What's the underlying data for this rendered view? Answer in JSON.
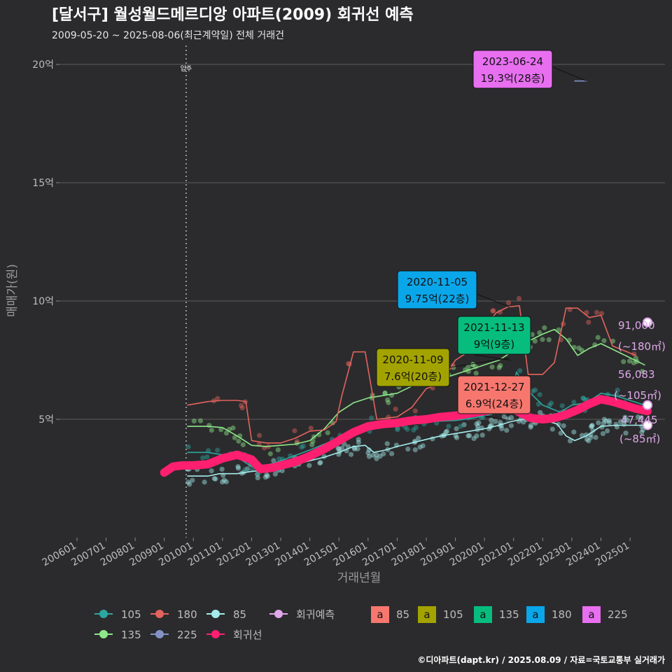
{
  "title": "[달서구] 월성월드메르디앙 아파트(2009) 회귀선 예측",
  "subtitle": "2009-05-20 ~ 2025-08-06(최근계약일) 전체 거래건",
  "credit": "©디아파트(dapt.kr) / 2025.08.09 / 자료=국토교통부 실거래가",
  "move_in_label": "입주",
  "chart_data": {
    "type": "line",
    "title": "[달서구] 월성월드메르디앙 아파트(2009) 회귀선 예측",
    "xlabel": "거래년월",
    "ylabel": "매매가(원)",
    "x_range": [
      2005.4,
      2026.2
    ],
    "ylim": [
      0,
      20.8
    ],
    "y_ticks": [
      {
        "v": 5,
        "label": "5억"
      },
      {
        "v": 10,
        "label": "10억"
      },
      {
        "v": 15,
        "label": "15억"
      },
      {
        "v": 20,
        "label": "20억"
      }
    ],
    "x_ticks": [
      "200601",
      "200701",
      "200801",
      "200901",
      "201001",
      "201101",
      "201201",
      "201301",
      "201401",
      "201501",
      "201601",
      "201701",
      "201801",
      "201901",
      "202001",
      "202101",
      "202201",
      "202301",
      "202401",
      "202501"
    ],
    "move_in_x": 2009.75,
    "series": [
      {
        "name": "85",
        "color": "#a4ecec",
        "points": [
          [
            2009.8,
            2.6
          ],
          [
            2010.1,
            2.6
          ],
          [
            2010.5,
            2.6
          ],
          [
            2010.9,
            2.7
          ],
          [
            2011.5,
            2.7
          ],
          [
            2012.0,
            2.8
          ],
          [
            2012.5,
            2.85
          ],
          [
            2013.0,
            3.0
          ],
          [
            2013.5,
            3.1
          ],
          [
            2014.0,
            3.25
          ],
          [
            2014.5,
            3.4
          ],
          [
            2015.0,
            3.6
          ],
          [
            2015.5,
            3.85
          ],
          [
            2015.9,
            3.9
          ],
          [
            2016.2,
            3.6
          ],
          [
            2016.6,
            3.7
          ],
          [
            2017.0,
            3.85
          ],
          [
            2017.5,
            4.0
          ],
          [
            2018.0,
            4.15
          ],
          [
            2018.5,
            4.3
          ],
          [
            2019.0,
            4.4
          ],
          [
            2019.5,
            4.5
          ],
          [
            2020.0,
            4.6
          ],
          [
            2020.5,
            4.75
          ],
          [
            2020.9,
            4.9
          ],
          [
            2021.3,
            5.0
          ],
          [
            2021.7,
            5.0
          ],
          [
            2022.1,
            4.95
          ],
          [
            2022.5,
            4.8
          ],
          [
            2022.8,
            4.3
          ],
          [
            2023.1,
            4.1
          ],
          [
            2023.5,
            4.3
          ],
          [
            2024.0,
            4.7
          ],
          [
            2024.5,
            4.75
          ],
          [
            2025.0,
            4.75
          ],
          [
            2025.5,
            4.75
          ]
        ]
      },
      {
        "name": "105",
        "color": "#2ea6a0",
        "points": [
          [
            2009.8,
            3.6
          ],
          [
            2010.5,
            3.6
          ],
          [
            2011.0,
            3.5
          ],
          [
            2011.5,
            3.4
          ],
          [
            2012.0,
            3.0
          ],
          [
            2012.5,
            3.05
          ],
          [
            2013.0,
            3.25
          ],
          [
            2014.0,
            3.7
          ],
          [
            2015.0,
            4.2
          ],
          [
            2015.7,
            4.7
          ],
          [
            2016.3,
            4.8
          ],
          [
            2017.0,
            4.7
          ],
          [
            2018.0,
            4.9
          ],
          [
            2019.0,
            4.95
          ],
          [
            2019.6,
            5.05
          ],
          [
            2020.2,
            5.2
          ],
          [
            2020.8,
            5.5
          ],
          [
            2021.1,
            7.0
          ],
          [
            2021.5,
            6.2
          ],
          [
            2022.0,
            5.6
          ],
          [
            2022.6,
            5.3
          ],
          [
            2023.0,
            5.6
          ],
          [
            2023.5,
            5.7
          ],
          [
            2024.0,
            6.1
          ],
          [
            2024.5,
            6.0
          ],
          [
            2025.0,
            5.8
          ],
          [
            2025.5,
            5.6
          ]
        ]
      },
      {
        "name": "135",
        "color": "#8ee88a",
        "points": [
          [
            2009.8,
            4.7
          ],
          [
            2010.5,
            4.7
          ],
          [
            2011.0,
            4.65
          ],
          [
            2011.5,
            4.3
          ],
          [
            2012.0,
            3.9
          ],
          [
            2012.5,
            3.85
          ],
          [
            2013.0,
            3.9
          ],
          [
            2013.5,
            3.95
          ],
          [
            2014.0,
            4.1
          ],
          [
            2014.5,
            4.6
          ],
          [
            2015.0,
            5.3
          ],
          [
            2015.5,
            5.7
          ],
          [
            2016.0,
            5.9
          ],
          [
            2016.5,
            6.0
          ],
          [
            2017.0,
            6.1
          ],
          [
            2017.5,
            6.4
          ],
          [
            2018.0,
            6.5
          ],
          [
            2018.5,
            6.7
          ],
          [
            2019.0,
            6.9
          ],
          [
            2019.5,
            7.1
          ],
          [
            2020.0,
            7.3
          ],
          [
            2020.5,
            7.5
          ],
          [
            2021.0,
            7.9
          ],
          [
            2021.5,
            8.3
          ],
          [
            2022.0,
            8.6
          ],
          [
            2022.4,
            8.8
          ],
          [
            2022.8,
            8.4
          ],
          [
            2023.2,
            7.7
          ],
          [
            2023.6,
            8.0
          ],
          [
            2024.0,
            8.2
          ],
          [
            2024.5,
            7.9
          ],
          [
            2025.0,
            7.6
          ],
          [
            2025.5,
            7.3
          ]
        ]
      },
      {
        "name": "180",
        "color": "#e3635d",
        "points": [
          [
            2009.8,
            5.6
          ],
          [
            2010.5,
            5.75
          ],
          [
            2011.0,
            5.8
          ],
          [
            2011.5,
            5.8
          ],
          [
            2011.8,
            5.75
          ],
          [
            2012.0,
            4.1
          ],
          [
            2012.5,
            4.0
          ],
          [
            2013.0,
            4.0
          ],
          [
            2013.5,
            4.2
          ],
          [
            2014.0,
            4.5
          ],
          [
            2014.5,
            4.55
          ],
          [
            2014.9,
            4.9
          ],
          [
            2015.1,
            6.0
          ],
          [
            2015.5,
            7.85
          ],
          [
            2015.9,
            7.85
          ],
          [
            2016.3,
            5.0
          ],
          [
            2017.0,
            5.1
          ],
          [
            2017.5,
            5.5
          ],
          [
            2018.0,
            6.3
          ],
          [
            2018.5,
            6.5
          ],
          [
            2019.0,
            7.5
          ],
          [
            2019.5,
            7.9
          ],
          [
            2020.0,
            8.9
          ],
          [
            2020.4,
            9.5
          ],
          [
            2020.8,
            9.75
          ],
          [
            2021.2,
            9.8
          ],
          [
            2021.5,
            6.9
          ],
          [
            2022.0,
            6.9
          ],
          [
            2022.4,
            7.4
          ],
          [
            2022.8,
            9.7
          ],
          [
            2023.2,
            9.7
          ],
          [
            2023.6,
            9.3
          ],
          [
            2024.0,
            9.4
          ],
          [
            2024.4,
            8.1
          ],
          [
            2024.8,
            7.9
          ],
          [
            2025.2,
            7.7
          ]
        ]
      },
      {
        "name": "225",
        "color": "#8392c7",
        "points": [
          [
            2023.1,
            19.3
          ],
          [
            2023.5,
            19.3
          ]
        ]
      },
      {
        "name": "회귀선",
        "color": "#ff1f70",
        "points": [
          [
            2009.0,
            2.75
          ],
          [
            2009.3,
            3.0
          ],
          [
            2009.6,
            3.05
          ],
          [
            2010.0,
            3.05
          ],
          [
            2010.5,
            3.1
          ],
          [
            2011.0,
            3.35
          ],
          [
            2011.5,
            3.5
          ],
          [
            2012.0,
            3.3
          ],
          [
            2012.3,
            2.9
          ],
          [
            2012.7,
            2.95
          ],
          [
            2013.0,
            3.05
          ],
          [
            2013.5,
            3.2
          ],
          [
            2014.0,
            3.45
          ],
          [
            2014.5,
            3.75
          ],
          [
            2015.0,
            4.1
          ],
          [
            2015.5,
            4.45
          ],
          [
            2016.0,
            4.7
          ],
          [
            2016.5,
            4.8
          ],
          [
            2017.0,
            4.85
          ],
          [
            2017.5,
            4.95
          ],
          [
            2018.0,
            5.0
          ],
          [
            2018.5,
            5.1
          ],
          [
            2019.0,
            5.15
          ],
          [
            2019.5,
            5.25
          ],
          [
            2020.0,
            5.35
          ],
          [
            2020.5,
            5.45
          ],
          [
            2020.9,
            5.5
          ],
          [
            2021.2,
            5.3
          ],
          [
            2021.6,
            5.05
          ],
          [
            2022.0,
            5.0
          ],
          [
            2022.4,
            5.05
          ],
          [
            2022.8,
            5.2
          ],
          [
            2023.2,
            5.4
          ],
          [
            2023.6,
            5.65
          ],
          [
            2024.0,
            5.85
          ],
          [
            2024.4,
            5.75
          ],
          [
            2024.8,
            5.6
          ],
          [
            2025.2,
            5.45
          ],
          [
            2025.6,
            5.35
          ]
        ]
      }
    ],
    "predictions": [
      {
        "value": "91,000",
        "area": "(~180㎡)",
        "x": 2025.6,
        "y": 9.1
      },
      {
        "value": "56,083",
        "area": "(~105㎡)",
        "x": 2025.6,
        "y": 5.6
      },
      {
        "value": "47,445",
        "area": "(~85㎡)",
        "x": 2025.6,
        "y": 4.75
      }
    ],
    "annotations": [
      {
        "date": "2023-06-24",
        "price": "19.3억(28층)",
        "fill": "#e76ff0",
        "x": 2023.5,
        "y": 19.3
      },
      {
        "date": "2020-11-05",
        "price": "9.75억(22층)",
        "fill": "#0aa6ea",
        "x": 2020.85,
        "y": 9.75
      },
      {
        "date": "2021-11-13",
        "price": "9억(9층)",
        "fill": "#06bd7e",
        "x": 2020.9,
        "y": 7.5
      },
      {
        "date": "2020-11-09",
        "price": "7.6억(20층)",
        "fill": "#a3a300",
        "x": 2020.85,
        "y": 7.6
      },
      {
        "date": "2021-12-27",
        "price": "6.9억(24층)",
        "fill": "#f7776f",
        "x": 2020.85,
        "y": 4.95
      }
    ],
    "legend": {
      "points": [
        {
          "label": "105",
          "color": "#2ea6a0"
        },
        {
          "label": "180",
          "color": "#e3635d"
        },
        {
          "label": "85",
          "color": "#a4ecec"
        },
        {
          "label": "회귀예측",
          "color": "#e0a8ea"
        },
        {
          "label": "135",
          "color": "#8ee88a"
        },
        {
          "label": "225",
          "color": "#8392c7"
        },
        {
          "label": "회귀선",
          "color": "#ff1f70"
        }
      ],
      "boxes": [
        {
          "label": "85",
          "color": "#f7776f"
        },
        {
          "label": "105",
          "color": "#a3a300"
        },
        {
          "label": "135",
          "color": "#06bd7e"
        },
        {
          "label": "180",
          "color": "#0aa6ea"
        },
        {
          "label": "225",
          "color": "#e76ff0"
        }
      ],
      "box_glyph": "a"
    }
  }
}
